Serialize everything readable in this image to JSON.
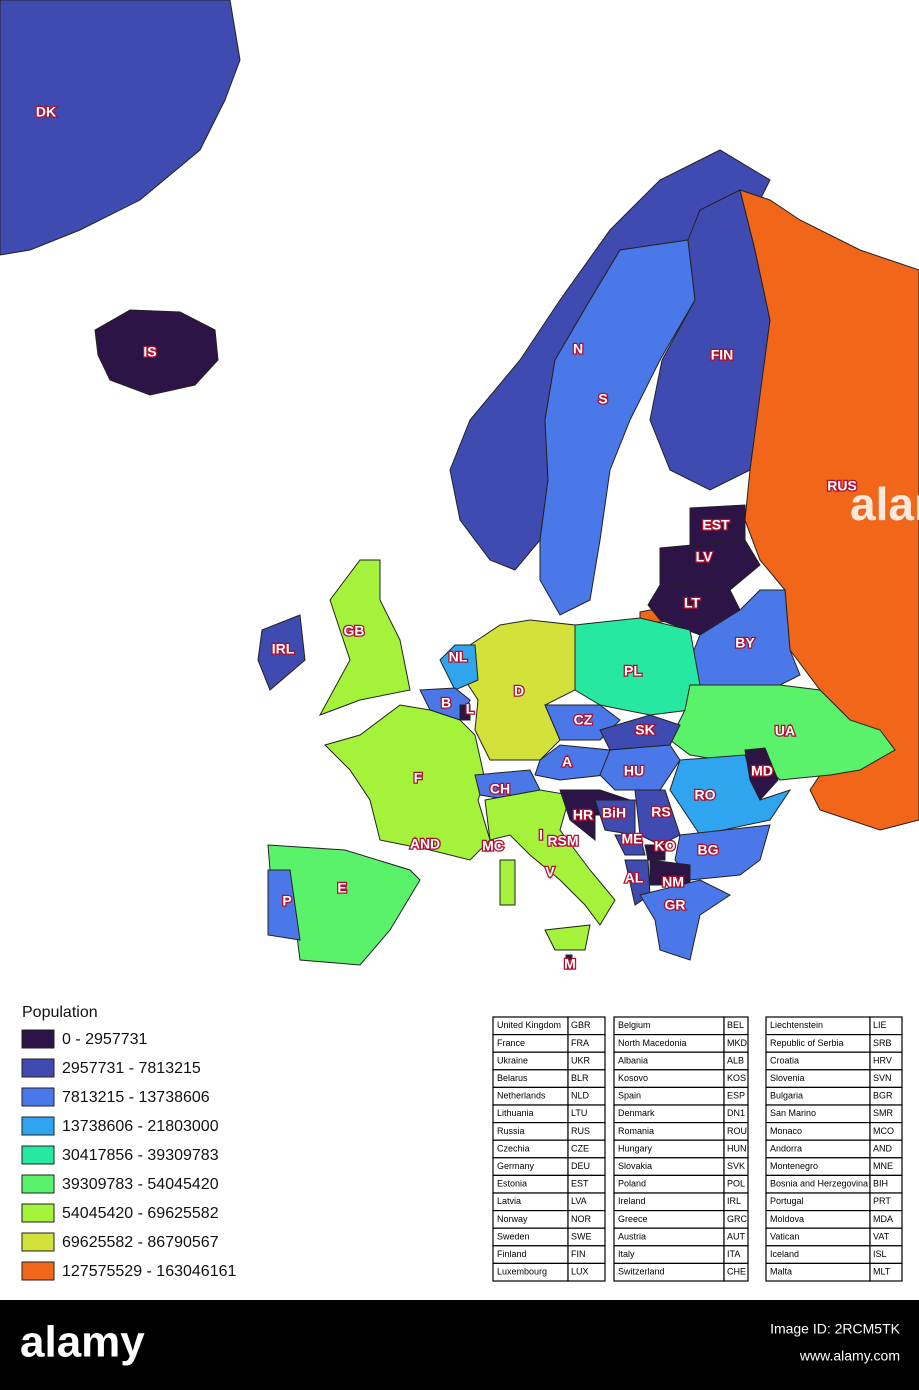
{
  "map": {
    "regions": [
      {
        "label": "DK",
        "color": "#3f4bb0"
      },
      {
        "label": "IS",
        "color": "#2d1446"
      },
      {
        "label": "N",
        "color": "#3f4bb0"
      },
      {
        "label": "S",
        "color": "#4a78e8"
      },
      {
        "label": "FIN",
        "color": "#3f4bb0"
      },
      {
        "label": "RUS",
        "color": "#f2661a"
      },
      {
        "label": "EST",
        "color": "#2d1446"
      },
      {
        "label": "LV",
        "color": "#2d1446"
      },
      {
        "label": "LT",
        "color": "#2d1446"
      },
      {
        "label": "BY",
        "color": "#4a78e8"
      },
      {
        "label": "PL",
        "color": "#27e8a0"
      },
      {
        "label": "UA",
        "color": "#5af26a"
      },
      {
        "label": "MD",
        "color": "#2d1446"
      },
      {
        "label": "RO",
        "color": "#2fa5f0"
      },
      {
        "label": "BG",
        "color": "#4a78e8"
      },
      {
        "label": "GB",
        "color": "#a4f23a"
      },
      {
        "label": "IRL",
        "color": "#3f4bb0"
      },
      {
        "label": "NL",
        "color": "#2fa5f0"
      },
      {
        "label": "B",
        "color": "#4a78e8"
      },
      {
        "label": "L",
        "color": "#2d1446"
      },
      {
        "label": "D",
        "color": "#d2e23a"
      },
      {
        "label": "CZ",
        "color": "#4a78e8"
      },
      {
        "label": "SK",
        "color": "#3f4bb0"
      },
      {
        "label": "A",
        "color": "#4a78e8"
      },
      {
        "label": "HU",
        "color": "#4a78e8"
      },
      {
        "label": "CH",
        "color": "#4a78e8"
      },
      {
        "label": "F",
        "color": "#a4f23a"
      },
      {
        "label": "AND",
        "color": "#2d1446"
      },
      {
        "label": "MC",
        "color": "#2d1446"
      },
      {
        "label": "I",
        "color": "#a4f23a"
      },
      {
        "label": "RSM",
        "color": "#2d1446"
      },
      {
        "label": "V",
        "color": "#2d1446"
      },
      {
        "label": "HR",
        "color": "#2d1446"
      },
      {
        "label": "BiH",
        "color": "#3f4bb0"
      },
      {
        "label": "RS",
        "color": "#3f4bb0"
      },
      {
        "label": "ME",
        "color": "#3f4bb0"
      },
      {
        "label": "KO",
        "color": "#2d1446"
      },
      {
        "label": "AL",
        "color": "#3f4bb0"
      },
      {
        "label": "NM",
        "color": "#2d1446"
      },
      {
        "label": "GR",
        "color": "#4a78e8"
      },
      {
        "label": "E",
        "color": "#5af26a"
      },
      {
        "label": "P",
        "color": "#4a78e8"
      },
      {
        "label": "M",
        "color": "#2d1446"
      }
    ],
    "watermark": "alam"
  },
  "legend": {
    "title": "Population",
    "items": [
      {
        "label": "0 - 2957731",
        "color": "#2d1446"
      },
      {
        "label": "2957731 - 7813215",
        "color": "#3f4bb0"
      },
      {
        "label": "7813215 - 13738606",
        "color": "#4a78e8"
      },
      {
        "label": "13738606 - 21803000",
        "color": "#2fa5f0"
      },
      {
        "label": "30417856 - 39309783",
        "color": "#27e8a0"
      },
      {
        "label": "39309783 - 54045420",
        "color": "#5af26a"
      },
      {
        "label": "54045420 - 69625582",
        "color": "#a4f23a"
      },
      {
        "label": "69625582 - 86790567",
        "color": "#d2e23a"
      },
      {
        "label": "127575529 - 163046161",
        "color": "#f2661a"
      }
    ]
  },
  "tables": [
    [
      [
        "United Kingdom",
        "GBR"
      ],
      [
        "France",
        "FRA"
      ],
      [
        "Ukraine",
        "UKR"
      ],
      [
        "Belarus",
        "BLR"
      ],
      [
        "Netherlands",
        "NLD"
      ],
      [
        "Lithuania",
        "LTU"
      ],
      [
        "Russia",
        "RUS"
      ],
      [
        "Czechia",
        "CZE"
      ],
      [
        "Germany",
        "DEU"
      ],
      [
        "Estonia",
        "EST"
      ],
      [
        "Latvia",
        "LVA"
      ],
      [
        "Norway",
        "NOR"
      ],
      [
        "Sweden",
        "SWE"
      ],
      [
        "Finland",
        "FIN"
      ],
      [
        "Luxembourg",
        "LUX"
      ]
    ],
    [
      [
        "Belgium",
        "BEL"
      ],
      [
        "North Macedonia",
        "MKD"
      ],
      [
        "Albania",
        "ALB"
      ],
      [
        "Kosovo",
        "KOS"
      ],
      [
        "Spain",
        "ESP"
      ],
      [
        "Denmark",
        "DN1"
      ],
      [
        "Romania",
        "ROU"
      ],
      [
        "Hungary",
        "HUN"
      ],
      [
        "Slovakia",
        "SVK"
      ],
      [
        "Poland",
        "POL"
      ],
      [
        "Ireland",
        "IRL"
      ],
      [
        "Greece",
        "GRC"
      ],
      [
        "Austria",
        "AUT"
      ],
      [
        "Italy",
        "ITA"
      ],
      [
        "Switzerland",
        "CHE"
      ]
    ],
    [
      [
        "Liechtenstein",
        "LIE"
      ],
      [
        "Republic of Serbia",
        "SRB"
      ],
      [
        "Croatia",
        "HRV"
      ],
      [
        "Slovenia",
        "SVN"
      ],
      [
        "Bulgaria",
        "BGR"
      ],
      [
        "San Marino",
        "SMR"
      ],
      [
        "Monaco",
        "MCO"
      ],
      [
        "Andorra",
        "AND"
      ],
      [
        "Montenegro",
        "MNE"
      ],
      [
        "Bosnia and Herzegovina",
        "BIH"
      ],
      [
        "Portugal",
        "PRT"
      ],
      [
        "Moldova",
        "MDA"
      ],
      [
        "Vatican",
        "VAT"
      ],
      [
        "Iceland",
        "ISL"
      ],
      [
        "Malta",
        "MLT"
      ]
    ]
  ],
  "footer": {
    "brand": "alamy",
    "image_id": "Image ID: 2RCM5TK",
    "url": "www.alamy.com"
  }
}
